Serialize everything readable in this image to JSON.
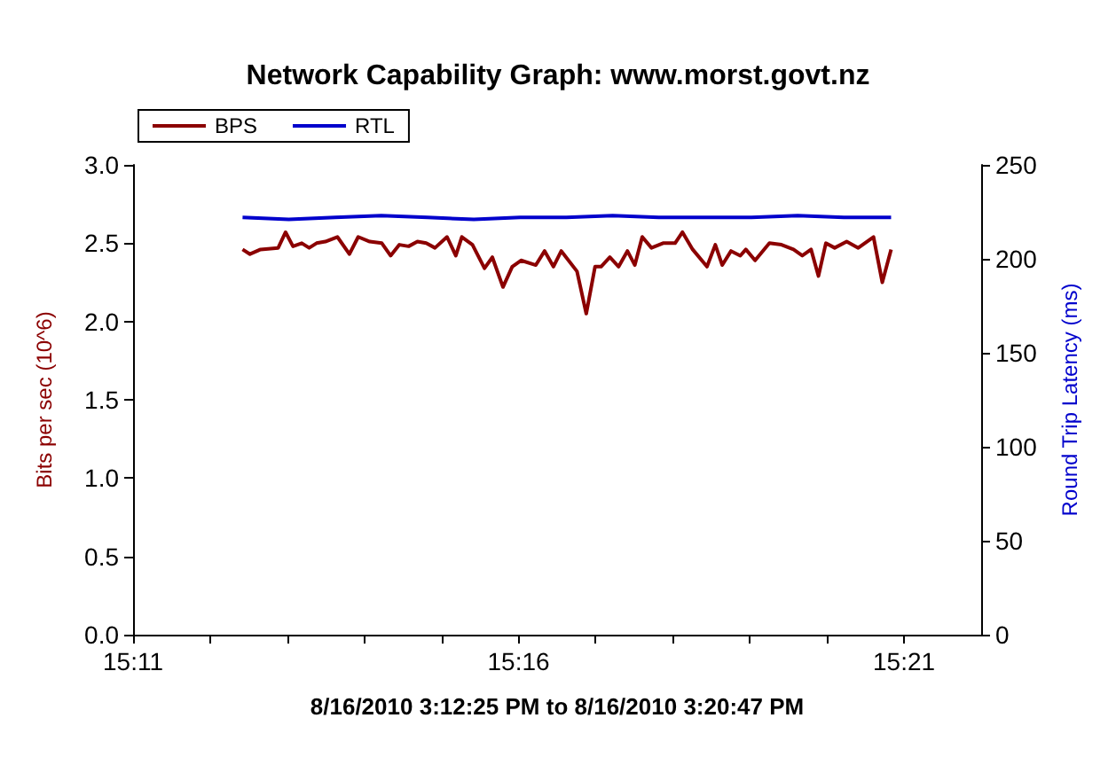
{
  "chart_data": {
    "type": "line",
    "title": "Network Capability Graph: www.morst.govt.nz",
    "xlabel": "8/16/2010 3:12:25 PM to 8/16/2010 3:20:47 PM",
    "ylabel": "Bits per sec (10^6)",
    "y2label": "Round Trip Latency (ms)",
    "xlim": [
      15.18333,
      15.36667
    ],
    "xticks": [
      {
        "value": 15.18333,
        "label": "15:11"
      },
      {
        "value": 15.2,
        "label": null
      },
      {
        "value": 15.21667,
        "label": null
      },
      {
        "value": 15.23333,
        "label": null
      },
      {
        "value": 15.25,
        "label": null
      },
      {
        "value": 15.26667,
        "label": "15:16"
      },
      {
        "value": 15.28333,
        "label": null
      },
      {
        "value": 15.3,
        "label": null
      },
      {
        "value": 15.31667,
        "label": null
      },
      {
        "value": 15.33333,
        "label": null
      },
      {
        "value": 15.35,
        "label": "15:21"
      }
    ],
    "ylim": [
      0,
      3
    ],
    "yticks": [
      {
        "value": 0,
        "label": "0.0"
      },
      {
        "value": 0.5,
        "label": "0.5"
      },
      {
        "value": 1,
        "label": "1.0"
      },
      {
        "value": 1.5,
        "label": "1.5"
      },
      {
        "value": 2,
        "label": "2.0"
      },
      {
        "value": 2.5,
        "label": "2.5"
      },
      {
        "value": 3,
        "label": "3.0"
      }
    ],
    "y2lim": [
      0,
      250
    ],
    "y2ticks": [
      0,
      50,
      100,
      150,
      200,
      250
    ],
    "grid": false,
    "legend": "top left",
    "marker": "none",
    "line_style": "solid",
    "series": [
      {
        "name": "BPS",
        "color": "#8b0000",
        "x": [
          15.207,
          15.2086,
          15.2109,
          15.2147,
          15.2163,
          15.2179,
          15.2198,
          15.2214,
          15.223,
          15.2249,
          15.2275,
          15.2301,
          15.232,
          15.2345,
          15.2371,
          15.239,
          15.2409,
          15.2429,
          15.2448,
          15.2467,
          15.2486,
          15.2512,
          15.2531,
          15.2544,
          15.2567,
          15.2593,
          15.261,
          15.2633,
          15.2653,
          15.2672,
          15.2704,
          15.2723,
          15.2742,
          15.2759,
          15.2793,
          15.2813,
          15.2832,
          15.2845,
          15.2864,
          15.2883,
          15.2902,
          15.2918,
          15.2934,
          15.2954,
          15.2979,
          15.3005,
          15.3021,
          15.3043,
          15.3074,
          15.3092,
          15.3107,
          15.3126,
          15.3146,
          15.3158,
          15.3178,
          15.3209,
          15.3235,
          15.3261,
          15.328,
          15.3299,
          15.3315,
          15.3331,
          15.335,
          15.3376,
          15.3401,
          15.3434,
          15.3453,
          15.3472
        ],
        "values": [
          2.46,
          2.43,
          2.46,
          2.47,
          2.57,
          2.48,
          2.5,
          2.47,
          2.5,
          2.51,
          2.54,
          2.43,
          2.54,
          2.51,
          2.5,
          2.42,
          2.49,
          2.48,
          2.51,
          2.5,
          2.47,
          2.54,
          2.42,
          2.54,
          2.49,
          2.34,
          2.41,
          2.22,
          2.35,
          2.39,
          2.36,
          2.45,
          2.35,
          2.45,
          2.32,
          2.05,
          2.35,
          2.35,
          2.41,
          2.35,
          2.45,
          2.36,
          2.54,
          2.47,
          2.5,
          2.5,
          2.57,
          2.46,
          2.35,
          2.49,
          2.36,
          2.45,
          2.42,
          2.46,
          2.39,
          2.5,
          2.49,
          2.46,
          2.42,
          2.46,
          2.29,
          2.5,
          2.47,
          2.51,
          2.47,
          2.54,
          2.25,
          2.46
        ]
      },
      {
        "name": "RTL",
        "color": "#0000cc",
        "axis": "y2",
        "x": [
          15.207,
          15.217,
          15.227,
          15.237,
          15.247,
          15.257,
          15.267,
          15.277,
          15.287,
          15.297,
          15.307,
          15.317,
          15.327,
          15.337,
          15.3472
        ],
        "values": [
          222,
          221,
          222,
          223,
          222,
          221,
          222,
          222,
          223,
          222,
          222,
          222,
          223,
          222,
          222
        ]
      }
    ]
  }
}
